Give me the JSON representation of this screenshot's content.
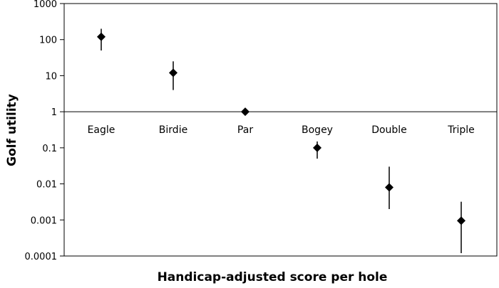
{
  "chart_data": {
    "type": "scatter",
    "title": "",
    "xlabel": "Handicap-adjusted score per hole",
    "ylabel": "Golf utility",
    "yscale": "log",
    "ylim": [
      0.0001,
      1000
    ],
    "yticks": [
      "0.0001",
      "0.001",
      "0.01",
      "0.1",
      "1",
      "10",
      "100",
      "1000"
    ],
    "categories": [
      "Eagle",
      "Birdie",
      "Par",
      "Bogey",
      "Double",
      "Triple"
    ],
    "reference_line": 1,
    "grid": false,
    "legend": "none",
    "marker": "diamond",
    "series": [
      {
        "values": [
          120,
          12,
          1,
          0.1,
          0.008,
          0.00095
        ],
        "error_low": [
          50,
          4,
          1,
          0.05,
          0.002,
          0.00012
        ],
        "error_high": [
          200,
          25,
          1,
          0.15,
          0.03,
          0.0032
        ]
      }
    ],
    "colors": {
      "marker": "#000000",
      "axis": "#000000"
    }
  }
}
